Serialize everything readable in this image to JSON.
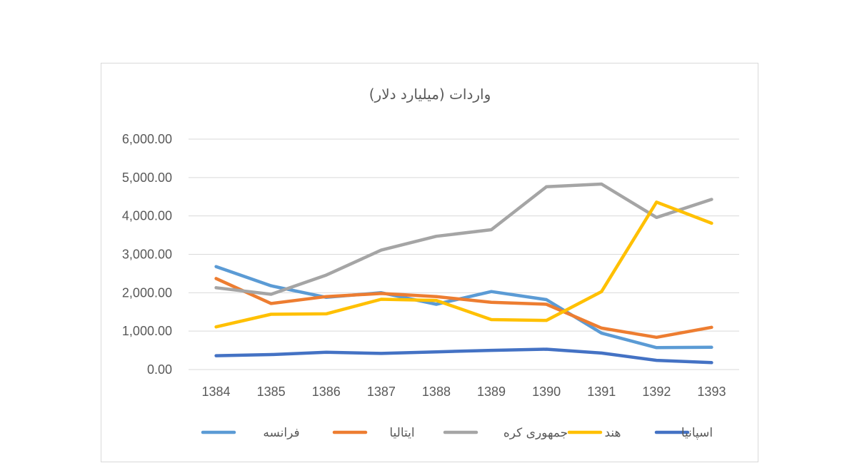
{
  "chart_data": {
    "type": "line",
    "title": "واردات (میلیارد دلار)",
    "xlabel": "",
    "ylabel": "",
    "categories": [
      "1384",
      "1385",
      "1386",
      "1387",
      "1388",
      "1389",
      "1390",
      "1391",
      "1392",
      "1393"
    ],
    "yticks": [
      "0.00",
      "1,000.00",
      "2,000.00",
      "3,000.00",
      "4,000.00",
      "5,000.00",
      "6,000.00"
    ],
    "ylim": [
      0,
      6000
    ],
    "grid": true,
    "legend_position": "bottom",
    "series": [
      {
        "name": "فرانسه",
        "color": "#5b9bd5",
        "values": [
          2680,
          2180,
          1880,
          2000,
          1700,
          2030,
          1820,
          950,
          570,
          580
        ]
      },
      {
        "name": "ایتالیا",
        "color": "#ed7d31",
        "values": [
          2370,
          1720,
          1900,
          1980,
          1900,
          1750,
          1700,
          1080,
          840,
          1100
        ]
      },
      {
        "name": "جمهوری کره",
        "color": "#a5a5a5",
        "values": [
          2130,
          1960,
          2460,
          3110,
          3470,
          3640,
          4760,
          4830,
          3960,
          4430
        ]
      },
      {
        "name": "هند",
        "color": "#ffc000",
        "values": [
          1110,
          1440,
          1450,
          1830,
          1800,
          1300,
          1280,
          2030,
          4360,
          3810
        ]
      },
      {
        "name": "اسپانیا",
        "color": "#4472c4",
        "values": [
          360,
          390,
          450,
          420,
          460,
          500,
          530,
          430,
          240,
          180
        ]
      }
    ]
  }
}
